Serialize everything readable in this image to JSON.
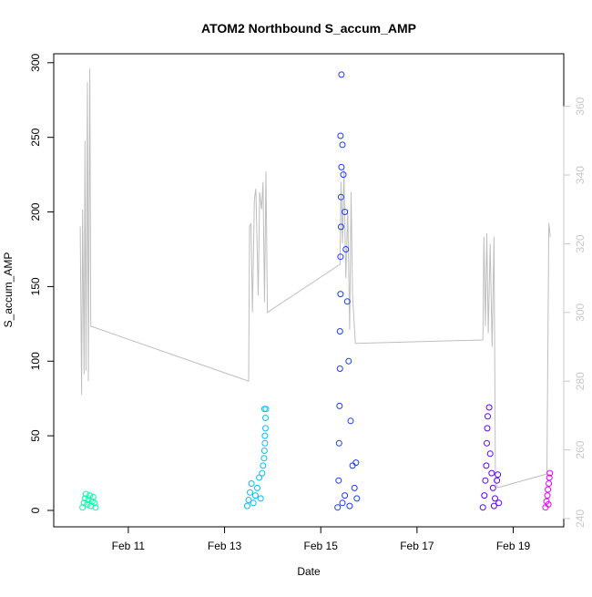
{
  "chart_data": {
    "type": "scatter",
    "title": "ATOM2 Northbound S_accum_AMP",
    "xlabel": "Date",
    "ylabel": "S_accum_AMP",
    "x_ticks": [
      "Feb 11",
      "Feb 13",
      "Feb 15",
      "Feb 17",
      "Feb 19"
    ],
    "x_tick_days": [
      11,
      13,
      15,
      17,
      19
    ],
    "xlim_days": [
      9.45,
      20.05
    ],
    "ylim": [
      -11,
      306
    ],
    "y_ticks": [
      0,
      50,
      100,
      150,
      200,
      250,
      300
    ],
    "y2lim": [
      237.6,
      375.3
    ],
    "y2_ticks": [
      240,
      260,
      280,
      300,
      320,
      340,
      360
    ],
    "grid": false,
    "legend": "none",
    "series": [
      {
        "color": "#00FFA6",
        "points": [
          {
            "x": 10.05,
            "y": 2
          },
          {
            "x": 10.08,
            "y": 5
          },
          {
            "x": 10.1,
            "y": 8
          },
          {
            "x": 10.12,
            "y": 11
          },
          {
            "x": 10.15,
            "y": 4
          },
          {
            "x": 10.17,
            "y": 7
          },
          {
            "x": 10.2,
            "y": 10
          },
          {
            "x": 10.22,
            "y": 3
          },
          {
            "x": 10.25,
            "y": 6
          },
          {
            "x": 10.27,
            "y": 9
          },
          {
            "x": 10.3,
            "y": 5
          },
          {
            "x": 10.32,
            "y": 2
          }
        ]
      },
      {
        "color": "#00BFFF",
        "points": [
          {
            "x": 13.47,
            "y": 3
          },
          {
            "x": 13.5,
            "y": 7
          },
          {
            "x": 13.53,
            "y": 12
          },
          {
            "x": 13.56,
            "y": 18
          },
          {
            "x": 13.6,
            "y": 5
          },
          {
            "x": 13.64,
            "y": 10
          },
          {
            "x": 13.68,
            "y": 15
          },
          {
            "x": 13.72,
            "y": 22
          },
          {
            "x": 13.75,
            "y": 8
          },
          {
            "x": 13.78,
            "y": 25
          },
          {
            "x": 13.8,
            "y": 30
          },
          {
            "x": 13.82,
            "y": 35
          },
          {
            "x": 13.83,
            "y": 40
          },
          {
            "x": 13.84,
            "y": 45
          },
          {
            "x": 13.84,
            "y": 50
          },
          {
            "x": 13.85,
            "y": 55
          },
          {
            "x": 13.85,
            "y": 62
          },
          {
            "x": 13.86,
            "y": 68
          },
          {
            "x": 13.83,
            "y": 68
          }
        ]
      },
      {
        "color": "#1A3BFF",
        "points": [
          {
            "x": 15.35,
            "y": 2
          },
          {
            "x": 15.37,
            "y": 20
          },
          {
            "x": 15.38,
            "y": 45
          },
          {
            "x": 15.39,
            "y": 70
          },
          {
            "x": 15.4,
            "y": 95
          },
          {
            "x": 15.4,
            "y": 120
          },
          {
            "x": 15.41,
            "y": 145
          },
          {
            "x": 15.41,
            "y": 170
          },
          {
            "x": 15.42,
            "y": 190
          },
          {
            "x": 15.42,
            "y": 210
          },
          {
            "x": 15.43,
            "y": 230
          },
          {
            "x": 15.41,
            "y": 251
          },
          {
            "x": 15.43,
            "y": 292
          },
          {
            "x": 15.45,
            "y": 245
          },
          {
            "x": 15.47,
            "y": 225
          },
          {
            "x": 15.5,
            "y": 200
          },
          {
            "x": 15.52,
            "y": 175
          },
          {
            "x": 15.55,
            "y": 140
          },
          {
            "x": 15.58,
            "y": 100
          },
          {
            "x": 15.62,
            "y": 60
          },
          {
            "x": 15.66,
            "y": 30
          },
          {
            "x": 15.7,
            "y": 15
          },
          {
            "x": 15.73,
            "y": 32
          },
          {
            "x": 15.75,
            "y": 8
          },
          {
            "x": 15.45,
            "y": 5
          },
          {
            "x": 15.5,
            "y": 10
          },
          {
            "x": 15.6,
            "y": 3
          }
        ]
      },
      {
        "color": "#5E00FF",
        "points": [
          {
            "x": 18.37,
            "y": 2
          },
          {
            "x": 18.4,
            "y": 10
          },
          {
            "x": 18.42,
            "y": 20
          },
          {
            "x": 18.44,
            "y": 30
          },
          {
            "x": 18.45,
            "y": 45
          },
          {
            "x": 18.46,
            "y": 55
          },
          {
            "x": 18.47,
            "y": 63
          },
          {
            "x": 18.5,
            "y": 69
          },
          {
            "x": 18.52,
            "y": 38
          },
          {
            "x": 18.55,
            "y": 25
          },
          {
            "x": 18.58,
            "y": 15
          },
          {
            "x": 18.62,
            "y": 8
          },
          {
            "x": 18.66,
            "y": 20
          },
          {
            "x": 18.68,
            "y": 24
          },
          {
            "x": 18.7,
            "y": 5
          },
          {
            "x": 18.6,
            "y": 3
          }
        ]
      },
      {
        "color": "#E600FF",
        "points": [
          {
            "x": 19.67,
            "y": 2
          },
          {
            "x": 19.69,
            "y": 6
          },
          {
            "x": 19.71,
            "y": 10
          },
          {
            "x": 19.72,
            "y": 14
          },
          {
            "x": 19.74,
            "y": 18
          },
          {
            "x": 19.75,
            "y": 22
          },
          {
            "x": 19.76,
            "y": 25
          },
          {
            "x": 19.73,
            "y": 4
          }
        ]
      }
    ],
    "secondary_series": {
      "color": "#BEBEBE",
      "axis": "right",
      "points": [
        {
          "x": 10.0,
          "y": 325
        },
        {
          "x": 10.03,
          "y": 276
        },
        {
          "x": 10.05,
          "y": 330
        },
        {
          "x": 10.08,
          "y": 282
        },
        {
          "x": 10.1,
          "y": 350
        },
        {
          "x": 10.12,
          "y": 283
        },
        {
          "x": 10.15,
          "y": 367
        },
        {
          "x": 10.17,
          "y": 280
        },
        {
          "x": 10.2,
          "y": 371
        },
        {
          "x": 10.22,
          "y": 296
        },
        {
          "x": 13.5,
          "y": 280
        },
        {
          "x": 13.52,
          "y": 325
        },
        {
          "x": 13.55,
          "y": 326
        },
        {
          "x": 13.58,
          "y": 300
        },
        {
          "x": 13.62,
          "y": 333
        },
        {
          "x": 13.65,
          "y": 336
        },
        {
          "x": 13.7,
          "y": 305
        },
        {
          "x": 13.73,
          "y": 335
        },
        {
          "x": 13.77,
          "y": 330
        },
        {
          "x": 13.8,
          "y": 338
        },
        {
          "x": 13.83,
          "y": 303
        },
        {
          "x": 13.86,
          "y": 341
        },
        {
          "x": 13.89,
          "y": 300
        },
        {
          "x": 15.4,
          "y": 314
        },
        {
          "x": 15.42,
          "y": 338
        },
        {
          "x": 15.45,
          "y": 320
        },
        {
          "x": 15.48,
          "y": 342
        },
        {
          "x": 15.52,
          "y": 310
        },
        {
          "x": 15.56,
          "y": 330
        },
        {
          "x": 15.6,
          "y": 295
        },
        {
          "x": 15.63,
          "y": 335
        },
        {
          "x": 15.66,
          "y": 305
        },
        {
          "x": 15.72,
          "y": 291
        },
        {
          "x": 18.37,
          "y": 292
        },
        {
          "x": 18.39,
          "y": 322
        },
        {
          "x": 18.42,
          "y": 296
        },
        {
          "x": 18.45,
          "y": 323
        },
        {
          "x": 18.48,
          "y": 294
        },
        {
          "x": 18.52,
          "y": 320
        },
        {
          "x": 18.56,
          "y": 290
        },
        {
          "x": 18.6,
          "y": 322
        },
        {
          "x": 18.63,
          "y": 250
        },
        {
          "x": 18.68,
          "y": 249
        },
        {
          "x": 19.7,
          "y": 253
        },
        {
          "x": 19.74,
          "y": 326
        },
        {
          "x": 19.77,
          "y": 322
        }
      ]
    }
  }
}
